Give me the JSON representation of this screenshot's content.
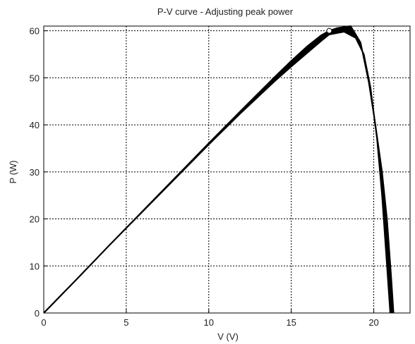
{
  "chart_data": {
    "type": "line",
    "title": "P-V curve - Adjusting peak power",
    "xlabel": "V (V)",
    "ylabel": "P (W)",
    "xlim": [
      0,
      22.2
    ],
    "ylim": [
      0,
      61
    ],
    "xticks": [
      0,
      5,
      10,
      15,
      20
    ],
    "yticks": [
      0,
      10,
      20,
      30,
      40,
      50,
      60
    ],
    "grid": true,
    "grid_style": "dotted",
    "line_color": "#000000",
    "series": [
      {
        "role": "lower-boundary",
        "x": [
          0,
          2,
          4,
          6,
          8,
          10,
          12,
          14,
          15,
          16,
          16.8,
          17.3,
          18.2,
          18.9,
          19.4,
          19.8,
          20.2,
          20.5,
          20.8,
          21.0
        ],
        "y": [
          0,
          7.2,
          14.5,
          21.6,
          28.7,
          35.8,
          42.7,
          49.3,
          52.4,
          55.4,
          57.8,
          59.2,
          59.8,
          58.5,
          55.0,
          48.0,
          37.0,
          25.0,
          10.0,
          0
        ]
      },
      {
        "role": "upper-boundary",
        "x": [
          0,
          2,
          4,
          6,
          8,
          10,
          12,
          14,
          15,
          16,
          16.8,
          17.3,
          17.8,
          18.6,
          19.2,
          19.7,
          20.1,
          20.5,
          20.8,
          21.05,
          21.2
        ],
        "y": [
          0,
          7.2,
          14.5,
          21.7,
          28.9,
          36.1,
          43.2,
          50.2,
          53.6,
          56.8,
          59.0,
          60.0,
          60.6,
          61.0,
          57.5,
          49.0,
          40.0,
          30.0,
          20.0,
          8.0,
          0
        ]
      }
    ],
    "annotations": [
      {
        "type": "marker",
        "shape": "circle",
        "x": 17.3,
        "y": 60
      }
    ]
  }
}
